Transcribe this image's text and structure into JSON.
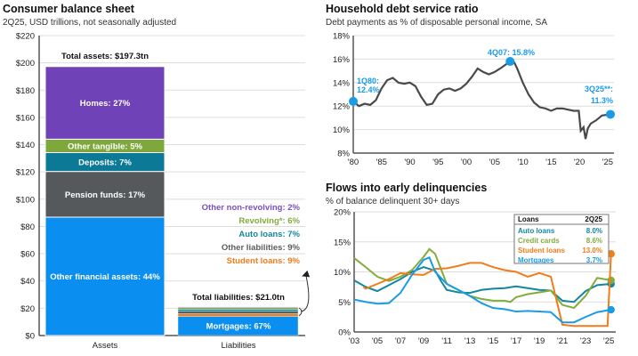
{
  "chart_data": [
    {
      "type": "bar",
      "title": "Consumer balance sheet",
      "subtitle": "2Q25, USD trillions, not seasonally adjusted",
      "categories": [
        "Assets",
        "Liabilities"
      ],
      "ylim": [
        0,
        220
      ],
      "yticks": [
        "$0",
        "$20",
        "$40",
        "$60",
        "$80",
        "$100",
        "$120",
        "$140",
        "$160",
        "$180",
        "$200",
        "$220"
      ],
      "grid": true,
      "assets": {
        "total": 197.3,
        "total_label": "Total assets: $197.3tn",
        "segments": [
          {
            "name": "Other financial assets",
            "pct": 44,
            "label": "Other financial assets: 44%",
            "color": "#0a8ef0"
          },
          {
            "name": "Pension funds",
            "pct": 17,
            "label": "Pension funds: 17%",
            "color": "#55595c"
          },
          {
            "name": "Deposits",
            "pct": 7,
            "label": "Deposits: 7%",
            "color": "#0c7a96"
          },
          {
            "name": "Other tangible",
            "pct": 5,
            "label": "Other tangible: 5%",
            "color": "#7fa83a"
          },
          {
            "name": "Homes",
            "pct": 27,
            "label": "Homes: 27%",
            "color": "#6f42b8"
          }
        ]
      },
      "liabilities": {
        "total": 21.0,
        "total_label": "Total liabilities: $21.0tn",
        "segments": [
          {
            "name": "Mortgages",
            "pct": 67,
            "label": "Mortgages: 67%",
            "color": "#0a8ef0"
          },
          {
            "name": "Student loans",
            "pct": 9,
            "label": "Student loans: 9%",
            "color": "#f07c1a"
          },
          {
            "name": "Other liabilities",
            "pct": 9,
            "label": "Other liabilities: 9%",
            "color": "#5a5e61"
          },
          {
            "name": "Auto loans",
            "pct": 7,
            "label": "Auto loans: 7%",
            "color": "#12879f"
          },
          {
            "name": "Revolving*",
            "pct": 6,
            "label": "Revolving*: 6%",
            "color": "#82ac3c"
          },
          {
            "name": "Other non-revolving",
            "pct": 2,
            "label": "Other non-revolving: 2%",
            "color": "#7a4ec4"
          }
        ]
      }
    },
    {
      "type": "line",
      "title": "Household debt service ratio",
      "subtitle": "Debt payments as % of disposable personal income, SA",
      "ylim": [
        8,
        18
      ],
      "yticks": [
        "8%",
        "10%",
        "12%",
        "14%",
        "16%",
        "18%"
      ],
      "xlim": [
        1980,
        2025.5
      ],
      "xticks": [
        "'80",
        "'85",
        "'90",
        "'95",
        "'00",
        "'05",
        "'10",
        "'15",
        "'20",
        "'25"
      ],
      "grid": true,
      "line_color": "#4a4a4a",
      "marker_color": "#1a9be8",
      "series": [
        {
          "x": [
            1980,
            1981,
            1982,
            1983,
            1984,
            1985,
            1986,
            1987,
            1988,
            1989,
            1990,
            1991,
            1992,
            1993,
            1994,
            1995,
            1996,
            1997,
            1998,
            1999,
            2000,
            2001,
            2002,
            2003,
            2004,
            2005,
            2006,
            2007.75,
            2008.5,
            2009,
            2010,
            2011,
            2012,
            2013,
            2014,
            2015,
            2016,
            2017,
            2018,
            2019,
            2019.9,
            2020.25,
            2020.75,
            2021.1,
            2021.5,
            2022,
            2023,
            2024,
            2025.5
          ],
          "y": [
            12.4,
            12.0,
            12.2,
            12.1,
            12.5,
            13.5,
            14.2,
            14.4,
            14.0,
            13.9,
            14.0,
            13.7,
            12.8,
            12.1,
            12.2,
            13.0,
            13.4,
            13.5,
            13.3,
            13.5,
            13.9,
            14.5,
            15.2,
            14.9,
            14.7,
            14.9,
            15.2,
            15.8,
            15.7,
            15.2,
            14.0,
            13.0,
            12.3,
            11.9,
            11.8,
            11.6,
            11.8,
            11.8,
            11.7,
            11.6,
            11.6,
            9.9,
            10.2,
            9.2,
            10.1,
            10.5,
            10.8,
            11.2,
            11.3
          ]
        }
      ],
      "annotations": [
        {
          "x": 1980,
          "y": 12.4,
          "label1": "1Q80:",
          "label2": "12.4%"
        },
        {
          "x": 2007.75,
          "y": 15.8,
          "label1": "4Q07:  15.8%",
          "label2": ""
        },
        {
          "x": 2025.5,
          "y": 11.3,
          "label1": "3Q25**:",
          "label2": "11.3%"
        }
      ]
    },
    {
      "type": "line",
      "title": "Flows into early delinquencies",
      "subtitle": "% of balance delinquent 30+ days",
      "ylim": [
        0,
        20
      ],
      "yticks": [
        "0%",
        "5%",
        "10%",
        "15%",
        "20%"
      ],
      "xlim": [
        2003,
        2025.3
      ],
      "xticks": [
        "'03",
        "'05",
        "'07",
        "'09",
        "'11",
        "'13",
        "'15",
        "'17",
        "'19",
        "'21",
        "'23",
        "'25"
      ],
      "grid": true,
      "legend": {
        "position": "top-right",
        "header": "Loans",
        "header_value": "2Q25"
      },
      "series": [
        {
          "name": "Auto loans",
          "value_label": "8.0%",
          "color": "#12879f",
          "x": [
            2003,
            2004,
            2005,
            2006,
            2007,
            2008,
            2009,
            2010,
            2010.5,
            2011,
            2012,
            2013,
            2014,
            2015,
            2016,
            2017,
            2018,
            2019,
            2020,
            2021,
            2022,
            2023,
            2024,
            2025.2
          ],
          "y": [
            8.6,
            7.5,
            6.8,
            7.8,
            8.8,
            10.0,
            10.8,
            10.2,
            8.5,
            7.0,
            6.6,
            6.5,
            7.0,
            7.2,
            7.3,
            7.6,
            7.3,
            7.0,
            6.9,
            5.2,
            5.0,
            6.8,
            7.8,
            8.0
          ]
        },
        {
          "name": "Credit cards",
          "value_label": "8.6%",
          "color": "#82ac3c",
          "x": [
            2003,
            2004,
            2005,
            2006,
            2007,
            2008,
            2009,
            2009.5,
            2010,
            2010.5,
            2011,
            2012,
            2013,
            2014,
            2015,
            2016,
            2016.5,
            2017,
            2018,
            2019,
            2020,
            2021,
            2022,
            2023,
            2024,
            2025.2
          ],
          "y": [
            12.3,
            10.8,
            9.2,
            8.5,
            9.2,
            10.3,
            12.5,
            13.8,
            13.0,
            10.5,
            8.0,
            7.0,
            6.0,
            5.5,
            5.2,
            5.2,
            5.0,
            5.8,
            6.3,
            6.6,
            6.9,
            4.5,
            4.0,
            6.0,
            9.0,
            8.6
          ]
        },
        {
          "name": "Student loans",
          "value_label": "13.0%",
          "color": "#f07c1a",
          "x": [
            2003.8,
            2004,
            2005,
            2006,
            2007,
            2008,
            2009,
            2010,
            2011,
            2012,
            2013,
            2014,
            2015,
            2016,
            2017,
            2018,
            2019,
            2020,
            2021,
            2022,
            2023,
            2024,
            2024.9,
            2025.2
          ],
          "y": [
            7.5,
            7.2,
            8.0,
            8.8,
            9.8,
            9.6,
            9.5,
            10.5,
            10.6,
            11.0,
            11.5,
            11.5,
            10.8,
            10.3,
            10.0,
            9.2,
            9.8,
            9.2,
            1.2,
            1.0,
            1.0,
            1.0,
            1.0,
            13.0
          ]
        },
        {
          "name": "Mortgages",
          "value_label": "3.7%",
          "color": "#1a9be8",
          "x": [
            2003,
            2004,
            2005,
            2006,
            2007,
            2008,
            2009,
            2009.5,
            2010,
            2011,
            2012,
            2013,
            2014,
            2015,
            2016,
            2017,
            2018,
            2019,
            2020,
            2021,
            2022,
            2023,
            2024,
            2025.2
          ],
          "y": [
            5.4,
            5.0,
            4.7,
            4.8,
            6.5,
            9.5,
            12.0,
            12.4,
            10.0,
            8.0,
            7.0,
            6.0,
            4.8,
            4.0,
            3.8,
            3.4,
            3.5,
            3.4,
            3.3,
            1.6,
            1.6,
            2.5,
            3.3,
            3.7
          ]
        }
      ]
    }
  ]
}
